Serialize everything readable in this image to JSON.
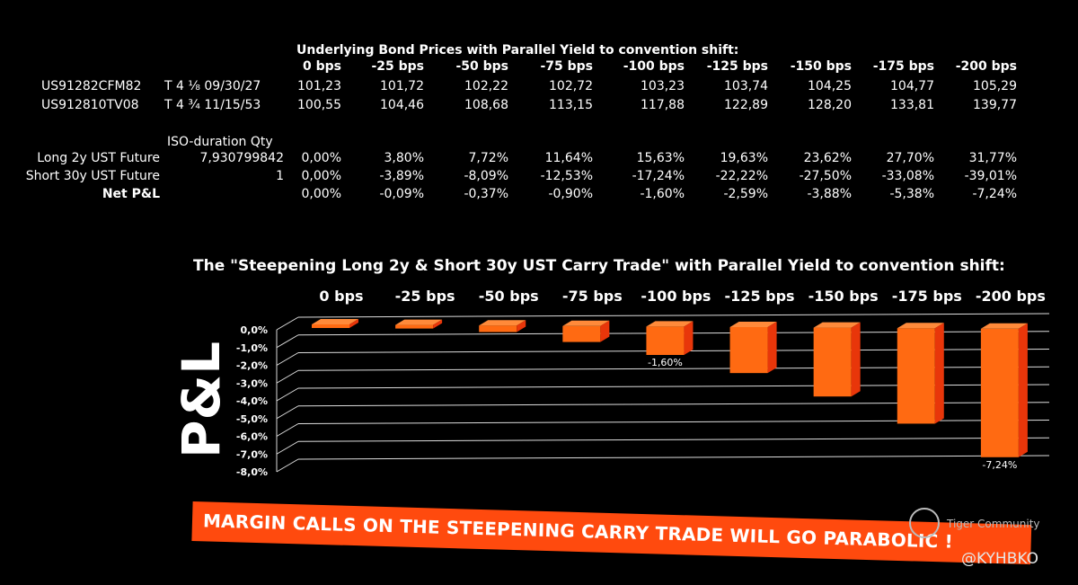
{
  "table": {
    "bond_title": "Underlying Bond Prices with Parallel Yield to convention shift:",
    "shifts": [
      "0 bps",
      "-25 bps",
      "-50 bps",
      "-75 bps",
      "-100 bps",
      "-125 bps",
      "-150 bps",
      "-175 bps",
      "-200 bps"
    ],
    "bonds": [
      {
        "id": "US91282CFM82",
        "desc": "T 4 ⅛ 09/30/27",
        "prices": [
          "101,23",
          "101,72",
          "102,22",
          "102,72",
          "103,23",
          "103,74",
          "104,25",
          "104,77",
          "105,29"
        ]
      },
      {
        "id": "US912810TV08",
        "desc": "T 4 ¾ 11/15/53",
        "prices": [
          "100,55",
          "104,46",
          "108,68",
          "113,15",
          "117,88",
          "122,89",
          "128,20",
          "133,81",
          "139,77"
        ]
      }
    ],
    "iso_header": "ISO-duration Qty",
    "positions": [
      {
        "label": "Long 2y UST Future",
        "qty": "7,930799842",
        "values": [
          "0,00%",
          "3,80%",
          "7,72%",
          "11,64%",
          "15,63%",
          "19,63%",
          "23,62%",
          "27,70%",
          "31,77%"
        ]
      },
      {
        "label": "Short 30y UST Future",
        "qty": "1",
        "values": [
          "0,00%",
          "-3,89%",
          "-8,09%",
          "-12,53%",
          "-17,24%",
          "-22,22%",
          "-27,50%",
          "-33,08%",
          "-39,01%"
        ]
      },
      {
        "label": "Net P&L",
        "qty": "",
        "values": [
          "0,00%",
          "-0,09%",
          "-0,37%",
          "-0,90%",
          "-1,60%",
          "-2,59%",
          "-3,88%",
          "-5,38%",
          "-7,24%"
        ]
      }
    ]
  },
  "chart_data": {
    "type": "bar",
    "title": "The \"Steepening Long 2y & Short 30y UST Carry Trade\" with Parallel Yield to convention shift:",
    "ylabel": "P&L",
    "xlabel": "",
    "categories": [
      "0 bps",
      "-25 bps",
      "-50 bps",
      "-75 bps",
      "-100 bps",
      "-125 bps",
      "-150 bps",
      "-175 bps",
      "-200 bps"
    ],
    "values": [
      0.0,
      -0.09,
      -0.37,
      -0.9,
      -1.6,
      -2.59,
      -3.88,
      -5.38,
      -7.24
    ],
    "ylim": [
      -8.0,
      0.0
    ],
    "yticks": [
      "0,0%",
      "-1,0%",
      "-2,0%",
      "-3,0%",
      "-4,0%",
      "-5,0%",
      "-6,0%",
      "-7,0%",
      "-8,0%"
    ],
    "data_labels": [
      {
        "category": "-100 bps",
        "text": "-1,60%"
      },
      {
        "category": "-200 bps",
        "text": "-7,24%"
      }
    ],
    "grid": true,
    "bar_color": "#ff6a12",
    "bar_side_color": "#e8360a"
  },
  "banner": {
    "text": "MARGIN CALLS ON THE STEEPENING CARRY TRADE WILL GO PARABOLIC !"
  },
  "watermark": {
    "text": "Tiger Community"
  },
  "handle": {
    "text": "@KYHBKO"
  }
}
